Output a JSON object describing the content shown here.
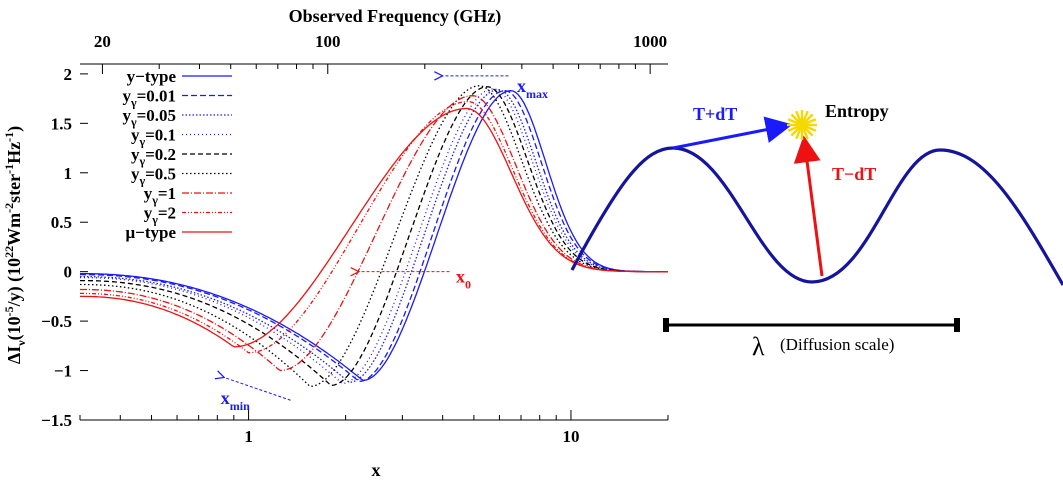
{
  "chart_data": {
    "type": "line",
    "xlabel": "x",
    "x2label": "Observed Frequency (GHz)",
    "ylabel": "ΔI_ν(10^-5/y) (10^22 W m^-2 ster^-1 Hz^-1)",
    "xscale": "log",
    "xlim": [
      0.3,
      20
    ],
    "ylim": [
      -1.5,
      2.1
    ],
    "x_ticks": [
      "1",
      "10"
    ],
    "x2_ticks": [
      "20",
      "100",
      "1000"
    ],
    "y_ticks": [
      "2",
      "1.5",
      "1",
      "0.5",
      "0",
      "-0.5",
      "-1",
      "-1.5"
    ],
    "legend_position": "top-left",
    "colors": {
      "blue": "#1a1aff",
      "black": "#000000",
      "red": "#ee1111",
      "navy": "#14149c",
      "yellow": "#f5d800"
    },
    "series": [
      {
        "name": "y−type",
        "legend": "y−type",
        "color": "#1a1aff",
        "dash": "solid",
        "min_x": 2.26,
        "min_y": -1.1,
        "max_x": 6.51,
        "max_y": 1.83,
        "zero_x": 3.83,
        "left_y": -0.02
      },
      {
        "name": "yγ=0.01",
        "legend": "y",
        "legend_sub": "γ",
        "legend_rest": "=0.01",
        "color": "#1a1aff",
        "dash": "6,3",
        "min_x": 2.2,
        "min_y": -1.11,
        "max_x": 6.25,
        "max_y": 1.83,
        "zero_x": 3.75,
        "left_y": -0.03
      },
      {
        "name": "yγ=0.05",
        "legend": "y",
        "legend_sub": "γ",
        "legend_rest": "=0.05",
        "color": "#1a1aff",
        "dash": "1.5,2",
        "min_x": 2.05,
        "min_y": -1.12,
        "max_x": 5.95,
        "max_y": 1.84,
        "zero_x": 3.55,
        "left_y": -0.05
      },
      {
        "name": "yγ=0.1",
        "legend": "y",
        "legend_sub": "γ",
        "legend_rest": "=0.1",
        "color": "#1a1aff",
        "dash": "1,3",
        "min_x": 1.95,
        "min_y": -1.13,
        "max_x": 5.75,
        "max_y": 1.85,
        "zero_x": 3.4,
        "left_y": -0.06
      },
      {
        "name": "yγ=0.2",
        "legend": "y",
        "legend_sub": "γ",
        "legend_rest": "=0.2",
        "color": "#000000",
        "dash": "5,3",
        "min_x": 1.8,
        "min_y": -1.15,
        "max_x": 5.5,
        "max_y": 1.87,
        "zero_x": 3.2,
        "left_y": -0.09
      },
      {
        "name": "yγ=0.5",
        "legend": "y",
        "legend_sub": "γ",
        "legend_rest": "=0.5",
        "color": "#000000",
        "dash": "1.5,2.5",
        "min_x": 1.55,
        "min_y": -1.16,
        "max_x": 5.2,
        "max_y": 1.88,
        "zero_x": 2.95,
        "left_y": -0.13
      },
      {
        "name": "yγ=1",
        "legend": "y",
        "legend_sub": "γ",
        "legend_rest": "=1",
        "color": "#ee1111",
        "dash": "7,2,1,2",
        "min_x": 1.25,
        "min_y": -1.0,
        "max_x": 4.95,
        "max_y": 1.78,
        "zero_x": 2.5,
        "left_y": -0.18
      },
      {
        "name": "yγ=2",
        "legend": "y",
        "legend_sub": "γ",
        "legend_rest": "=2",
        "color": "#ee1111",
        "dash": "4,2,1,2,1,2",
        "min_x": 1.0,
        "min_y": -0.82,
        "max_x": 4.8,
        "max_y": 1.72,
        "zero_x": 2.25,
        "left_y": -0.22
      },
      {
        "name": "μ−type",
        "legend": "μ−type",
        "color": "#ee1111",
        "dash": "solid",
        "min_x": 0.9,
        "min_y": -0.76,
        "max_x": 4.75,
        "max_y": 1.65,
        "zero_x": 2.19,
        "left_y": -0.25
      }
    ],
    "annotations": [
      {
        "label": "x",
        "sub": "max",
        "color": "#1a1aff",
        "x": 6.8,
        "y": 1.88,
        "arrow_from": [
          6.4,
          1.98
        ],
        "arrow_to": [
          4.0,
          1.98
        ]
      },
      {
        "label": "x",
        "sub": "0",
        "color": "#ee1111",
        "x": 4.4,
        "y": -0.05,
        "arrow_from": [
          4.2,
          0.0
        ],
        "arrow_to": [
          2.2,
          0.0
        ]
      },
      {
        "label": "x",
        "sub": "min",
        "color": "#1a1aff",
        "x": 0.82,
        "y": -1.28,
        "arrow_from": [
          1.35,
          -1.3
        ],
        "arrow_to": [
          0.84,
          -1.07
        ]
      }
    ]
  },
  "inset": {
    "label_warm": "T+dT",
    "label_cold": "T−dT",
    "label_entropy": "Entropy",
    "scale_symbol": "λ",
    "scale_text": "(Diffusion scale)"
  }
}
